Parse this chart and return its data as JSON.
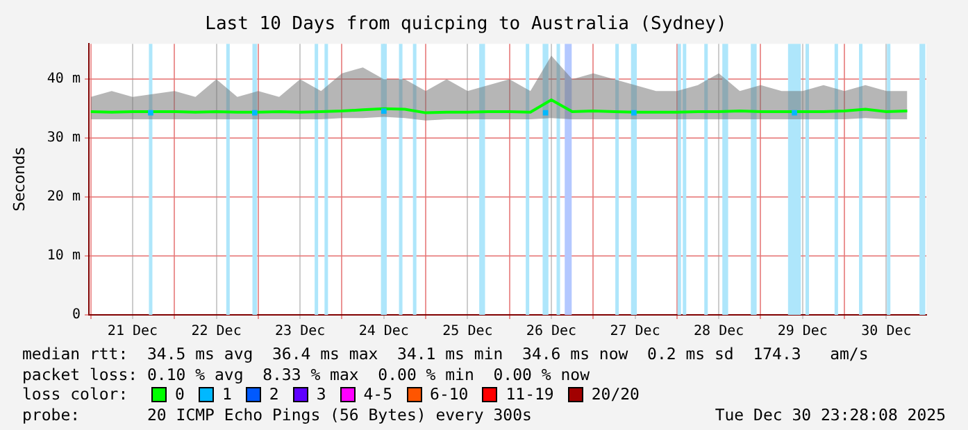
{
  "chart_data": {
    "type": "line",
    "title": "Last 10 Days from quicping to Australia (Sydney)",
    "ylabel": "Seconds",
    "legend_title": "loss color:",
    "legend": "bottom",
    "grid": true,
    "xlim": [
      "2025-12-20T23:28",
      "2025-12-30T23:28"
    ],
    "xticks": [
      {
        "value": "2025-12-21T00:00",
        "label": null
      },
      {
        "value": "2025-12-21T12:00",
        "label": "21 Dec"
      },
      {
        "value": "2025-12-22T00:00",
        "label": null
      },
      {
        "value": "2025-12-22T12:00",
        "label": "22 Dec"
      },
      {
        "value": "2025-12-23T00:00",
        "label": null
      },
      {
        "value": "2025-12-23T12:00",
        "label": "23 Dec"
      },
      {
        "value": "2025-12-24T00:00",
        "label": null
      },
      {
        "value": "2025-12-24T12:00",
        "label": "24 Dec"
      },
      {
        "value": "2025-12-25T00:00",
        "label": null
      },
      {
        "value": "2025-12-25T12:00",
        "label": "25 Dec"
      },
      {
        "value": "2025-12-26T00:00",
        "label": null
      },
      {
        "value": "2025-12-26T12:00",
        "label": "26 Dec"
      },
      {
        "value": "2025-12-27T00:00",
        "label": null
      },
      {
        "value": "2025-12-27T12:00",
        "label": "27 Dec"
      },
      {
        "value": "2025-12-28T00:00",
        "label": null
      },
      {
        "value": "2025-12-28T12:00",
        "label": "28 Dec"
      },
      {
        "value": "2025-12-29T00:00",
        "label": null
      },
      {
        "value": "2025-12-29T12:00",
        "label": "29 Dec"
      },
      {
        "value": "2025-12-30T00:00",
        "label": null
      },
      {
        "value": "2025-12-30T12:00",
        "label": "30 Dec"
      }
    ],
    "ylim": [
      0,
      46
    ],
    "yticks": [
      {
        "value": 0,
        "label": "0"
      },
      {
        "value": 10,
        "label": "10 m"
      },
      {
        "value": 20,
        "label": "20 m"
      },
      {
        "value": 30,
        "label": "30 m"
      },
      {
        "value": 40,
        "label": "40 m"
      }
    ],
    "x": [
      "2025-12-21T00:00",
      "2025-12-21T06:00",
      "2025-12-21T12:00",
      "2025-12-21T18:00",
      "2025-12-22T00:00",
      "2025-12-22T06:00",
      "2025-12-22T12:00",
      "2025-12-22T18:00",
      "2025-12-23T00:00",
      "2025-12-23T06:00",
      "2025-12-23T12:00",
      "2025-12-23T18:00",
      "2025-12-24T00:00",
      "2025-12-24T06:00",
      "2025-12-24T12:00",
      "2025-12-24T18:00",
      "2025-12-25T00:00",
      "2025-12-25T06:00",
      "2025-12-25T12:00",
      "2025-12-25T18:00",
      "2025-12-26T00:00",
      "2025-12-26T06:00",
      "2025-12-26T12:00",
      "2025-12-26T18:00",
      "2025-12-27T00:00",
      "2025-12-27T06:00",
      "2025-12-27T12:00",
      "2025-12-27T18:00",
      "2025-12-28T00:00",
      "2025-12-28T06:00",
      "2025-12-28T12:00",
      "2025-12-28T18:00",
      "2025-12-29T00:00",
      "2025-12-29T06:00",
      "2025-12-29T12:00",
      "2025-12-29T18:00",
      "2025-12-30T00:00",
      "2025-12-30T06:00",
      "2025-12-30T12:00",
      "2025-12-30T18:00"
    ],
    "series": [
      {
        "name": "0",
        "color": "#00ff00",
        "values": [
          34.5,
          34.4,
          34.5,
          34.5,
          34.5,
          34.4,
          34.5,
          34.4,
          34.4,
          34.5,
          34.4,
          34.5,
          34.6,
          34.8,
          35.0,
          34.9,
          34.3,
          34.4,
          34.4,
          34.5,
          34.5,
          34.4,
          36.5,
          34.5,
          34.6,
          34.5,
          34.4,
          34.4,
          34.4,
          34.5,
          34.5,
          34.6,
          34.5,
          34.5,
          34.5,
          34.5,
          34.6,
          34.9,
          34.5,
          34.6
        ],
        "lower": [
          33.2,
          33.2,
          33.2,
          33.2,
          33.2,
          33.2,
          33.2,
          33.2,
          33.2,
          33.2,
          33.2,
          33.2,
          33.4,
          33.4,
          33.6,
          33.4,
          33.0,
          33.2,
          33.2,
          33.2,
          33.2,
          33.2,
          33.4,
          33.2,
          33.2,
          33.2,
          33.2,
          33.2,
          33.2,
          33.2,
          33.2,
          33.2,
          33.2,
          33.2,
          33.2,
          33.2,
          33.2,
          33.4,
          33.2,
          33.2
        ],
        "upper": [
          37,
          38,
          37,
          37.5,
          38,
          37,
          40,
          37,
          38,
          37,
          40,
          38,
          41,
          42,
          40,
          40,
          38,
          40,
          38,
          39,
          40,
          38,
          44,
          40,
          41,
          40,
          39,
          38,
          38,
          39,
          41,
          38,
          39,
          38,
          38,
          39,
          38,
          39,
          38,
          38
        ]
      },
      {
        "name": "1",
        "type": "scatter",
        "marker": "square",
        "color": "#00b8ff",
        "x": [
          "2025-12-21T17:10",
          "2025-12-22T23:00",
          "2025-12-24T12:00",
          "2025-12-26T10:20",
          "2025-12-27T11:40",
          "2025-12-29T09:40"
        ],
        "values": [
          34.3,
          34.3,
          34.6,
          34.3,
          34.3,
          34.3
        ]
      },
      {
        "name": "2",
        "type": "scatter",
        "marker": "square",
        "color": "#0059ff",
        "values": [
          null,
          null,
          null,
          null,
          null,
          null,
          null,
          null,
          null,
          null,
          null,
          null,
          null,
          null,
          null,
          null,
          null,
          null,
          null,
          null,
          null,
          null,
          null,
          null,
          null,
          null,
          null,
          null,
          null,
          null,
          null,
          null,
          null,
          null,
          null,
          null,
          null,
          null,
          null,
          null
        ]
      },
      {
        "name": "3",
        "type": "scatter",
        "marker": "square",
        "color": "#5e00ff",
        "values": [
          null,
          null,
          null,
          null,
          null,
          null,
          null,
          null,
          null,
          null,
          null,
          null,
          null,
          null,
          null,
          null,
          null,
          null,
          null,
          null,
          null,
          null,
          null,
          null,
          null,
          null,
          null,
          null,
          null,
          null,
          null,
          null,
          null,
          null,
          null,
          null,
          null,
          null,
          null,
          null
        ]
      },
      {
        "name": "4-5",
        "type": "scatter",
        "marker": "square",
        "color": "#ff00ff",
        "values": [
          null,
          null,
          null,
          null,
          null,
          null,
          null,
          null,
          null,
          null,
          null,
          null,
          null,
          null,
          null,
          null,
          null,
          null,
          null,
          null,
          null,
          null,
          null,
          null,
          null,
          null,
          null,
          null,
          null,
          null,
          null,
          null,
          null,
          null,
          null,
          null,
          null,
          null,
          null,
          null
        ]
      },
      {
        "name": "6-10",
        "type": "scatter",
        "marker": "square",
        "color": "#ff5500",
        "values": [
          null,
          null,
          null,
          null,
          null,
          null,
          null,
          null,
          null,
          null,
          null,
          null,
          null,
          null,
          null,
          null,
          null,
          null,
          null,
          null,
          null,
          null,
          null,
          null,
          null,
          null,
          null,
          null,
          null,
          null,
          null,
          null,
          null,
          null,
          null,
          null,
          null,
          null,
          null,
          null
        ]
      },
      {
        "name": "11-19",
        "type": "scatter",
        "marker": "square",
        "color": "#ff0000",
        "values": [
          null,
          null,
          null,
          null,
          null,
          null,
          null,
          null,
          null,
          null,
          null,
          null,
          null,
          null,
          null,
          null,
          null,
          null,
          null,
          null,
          null,
          null,
          null,
          null,
          null,
          null,
          null,
          null,
          null,
          null,
          null,
          null,
          null,
          null,
          null,
          null,
          null,
          null,
          null,
          null
        ]
      },
      {
        "name": "20/20",
        "type": "scatter",
        "marker": "square",
        "color": "#a10000",
        "values": [
          null,
          null,
          null,
          null,
          null,
          null,
          null,
          null,
          null,
          null,
          null,
          null,
          null,
          null,
          null,
          null,
          null,
          null,
          null,
          null,
          null,
          null,
          null,
          null,
          null,
          null,
          null,
          null,
          null,
          null,
          null,
          null,
          null,
          null,
          null,
          null,
          null,
          null,
          null,
          null
        ]
      }
    ],
    "bands": [
      {
        "axis": "x",
        "from": "2025-12-21T16:40",
        "to": "2025-12-21T17:40",
        "color": "#aee6fb"
      },
      {
        "axis": "x",
        "from": "2025-12-22T14:50",
        "to": "2025-12-22T15:50",
        "color": "#aee6fb"
      },
      {
        "axis": "x",
        "from": "2025-12-22T22:20",
        "to": "2025-12-22T23:40",
        "color": "#aee6fb"
      },
      {
        "axis": "x",
        "from": "2025-12-23T16:10",
        "to": "2025-12-23T17:10",
        "color": "#aee6fb"
      },
      {
        "axis": "x",
        "from": "2025-12-23T19:00",
        "to": "2025-12-23T20:00",
        "color": "#aee6fb"
      },
      {
        "axis": "x",
        "from": "2025-12-24T11:10",
        "to": "2025-12-24T12:50",
        "color": "#aee6fb"
      },
      {
        "axis": "x",
        "from": "2025-12-24T16:20",
        "to": "2025-12-24T17:20",
        "color": "#aee6fb"
      },
      {
        "axis": "x",
        "from": "2025-12-24T20:20",
        "to": "2025-12-24T21:20",
        "color": "#aee6fb"
      },
      {
        "axis": "x",
        "from": "2025-12-25T15:20",
        "to": "2025-12-25T17:00",
        "color": "#aee6fb"
      },
      {
        "axis": "x",
        "from": "2025-12-26T04:40",
        "to": "2025-12-26T05:40",
        "color": "#aee6fb"
      },
      {
        "axis": "x",
        "from": "2025-12-26T09:30",
        "to": "2025-12-26T11:10",
        "color": "#aee6fb"
      },
      {
        "axis": "x",
        "from": "2025-12-26T13:30",
        "to": "2025-12-26T14:30",
        "color": "#aee6fb"
      },
      {
        "axis": "x",
        "from": "2025-12-26T15:50",
        "to": "2025-12-26T17:50",
        "color": "#b4c8ff"
      },
      {
        "axis": "x",
        "from": "2025-12-27T06:20",
        "to": "2025-12-27T07:20",
        "color": "#aee6fb"
      },
      {
        "axis": "x",
        "from": "2025-12-27T10:50",
        "to": "2025-12-27T12:30",
        "color": "#aee6fb"
      },
      {
        "axis": "x",
        "from": "2025-12-28T00:10",
        "to": "2025-12-28T01:10",
        "color": "#aee6fb"
      },
      {
        "axis": "x",
        "from": "2025-12-28T01:40",
        "to": "2025-12-28T02:40",
        "color": "#aee6fb"
      },
      {
        "axis": "x",
        "from": "2025-12-28T07:50",
        "to": "2025-12-28T08:50",
        "color": "#aee6fb"
      },
      {
        "axis": "x",
        "from": "2025-12-28T13:00",
        "to": "2025-12-28T14:40",
        "color": "#aee6fb"
      },
      {
        "axis": "x",
        "from": "2025-12-28T21:10",
        "to": "2025-12-28T22:50",
        "color": "#aee6fb"
      },
      {
        "axis": "x",
        "from": "2025-12-29T07:50",
        "to": "2025-12-29T11:30",
        "color": "#aee6fb"
      },
      {
        "axis": "x",
        "from": "2025-12-29T12:50",
        "to": "2025-12-29T13:50",
        "color": "#aee6fb"
      },
      {
        "axis": "x",
        "from": "2025-12-29T21:10",
        "to": "2025-12-29T22:10",
        "color": "#aee6fb"
      },
      {
        "axis": "x",
        "from": "2025-12-30T04:10",
        "to": "2025-12-30T05:10",
        "color": "#aee6fb"
      },
      {
        "axis": "x",
        "from": "2025-12-30T12:10",
        "to": "2025-12-30T13:10",
        "color": "#aee6fb"
      },
      {
        "axis": "x",
        "from": "2025-12-30T21:30",
        "to": "2025-12-30T23:10",
        "color": "#aee6fb"
      }
    ],
    "annotations": [
      "median rtt:  34.5 ms avg  36.4 ms max  34.1 ms min  34.6 ms now  0.2 ms sd  174.3   am/s",
      "packet loss: 0.10 % avg  8.33 % max  0.00 % min  0.00 % now",
      "probe:       20 ICMP Echo Pings (56 Bytes) every 300s",
      "Tue Dec 30 23:28:08 2025"
    ]
  }
}
